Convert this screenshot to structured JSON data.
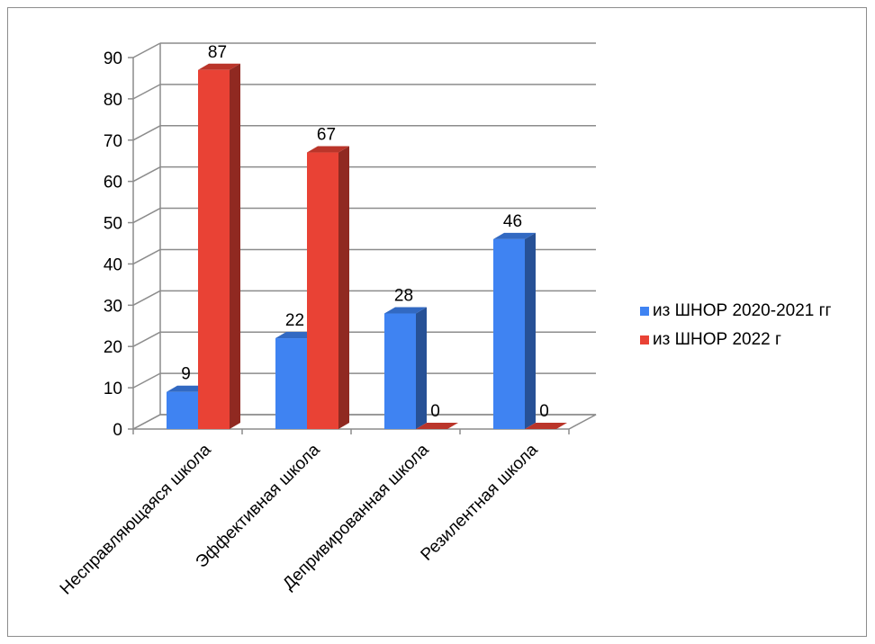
{
  "chart_data": {
    "type": "bar",
    "categories": [
      "Несправляющаяся школа",
      "Эффективная школа",
      "Депривированная школа",
      "Резилентная школа"
    ],
    "series": [
      {
        "name": "из ШНОР 2020-2021 гг",
        "color": "#3f83f2",
        "values": [
          9,
          22,
          28,
          46
        ]
      },
      {
        "name": "из ШНОР 2022 г",
        "color": "#e94235",
        "values": [
          87,
          67,
          0,
          0
        ]
      }
    ],
    "ylim": [
      0,
      90
    ],
    "yticks": [
      0,
      10,
      20,
      30,
      40,
      50,
      60,
      70,
      80,
      90
    ],
    "grid": true,
    "legend": "right",
    "style": "3d-column"
  }
}
